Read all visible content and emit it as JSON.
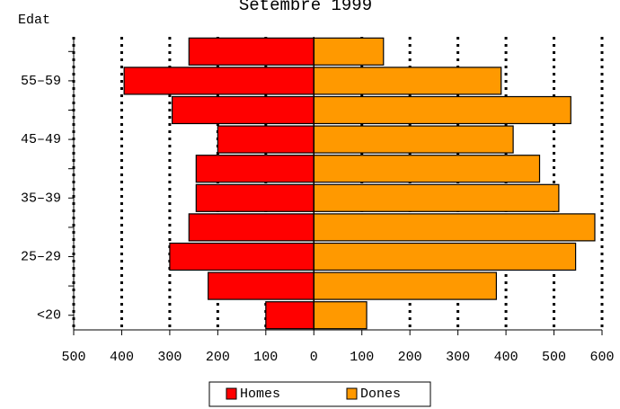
{
  "chart_data": {
    "type": "pyramid",
    "title": "Setembre 1999",
    "y_label": "Edat",
    "categories": [
      "<20",
      null,
      "25–29",
      null,
      "35–39",
      null,
      "45–49",
      null,
      "55–59",
      null
    ],
    "series": [
      {
        "name": "Homes",
        "color": "#ff0000",
        "values": [
          -100,
          -220,
          -300,
          -260,
          -245,
          -245,
          -200,
          -295,
          -395,
          -260
        ]
      },
      {
        "name": "Dones",
        "color": "#ff9900",
        "values": [
          110,
          380,
          545,
          585,
          510,
          470,
          415,
          535,
          390,
          145
        ]
      }
    ],
    "xlim": [
      -500,
      600
    ],
    "xticks": [
      {
        "value": -500,
        "label": "500"
      },
      {
        "value": -400,
        "label": "400"
      },
      {
        "value": -300,
        "label": "300"
      },
      {
        "value": -200,
        "label": "200"
      },
      {
        "value": -100,
        "label": "100"
      },
      0,
      100,
      200,
      300,
      400,
      500,
      600
    ],
    "grid": true,
    "legend": "bottom"
  }
}
